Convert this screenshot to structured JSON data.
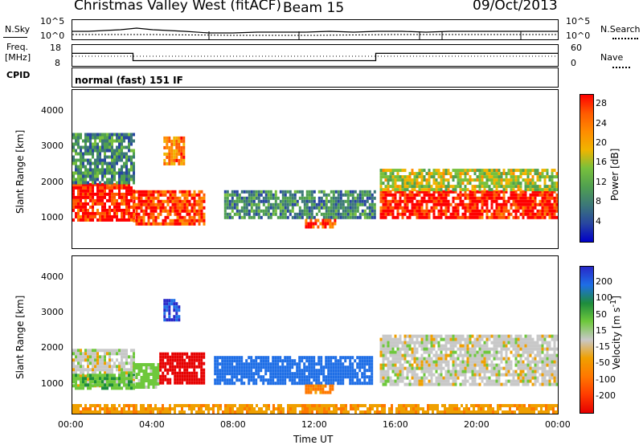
{
  "header": {
    "station": "Christmas Valley West (fitACF)",
    "beam": "Beam 15",
    "date": "09/Oct/2013"
  },
  "status": {
    "nsky_label": "N.Sky",
    "nsearch_label": "N.Search",
    "freq_label_1": "Freq.",
    "freq_label_2": "[MHz]",
    "nave_label": "Nave",
    "cpid_label": "CPID",
    "mode_text": "normal (fast) 151 IF",
    "noise_ticks_left": [
      "10^5",
      "10^0"
    ],
    "noise_ticks_right": [
      "10^5",
      "10^0"
    ],
    "freq_ticks": [
      "18",
      "8"
    ],
    "nave_ticks": [
      "60",
      "0"
    ],
    "freq_steps": [
      {
        "start": "00:00",
        "end": "03:00",
        "freq_mhz": 14
      },
      {
        "start": "03:00",
        "end": "15:00",
        "freq_mhz": 10.5
      },
      {
        "start": "15:00",
        "end": "24:00",
        "freq_mhz": 14
      }
    ]
  },
  "chart_data": [
    {
      "type": "heatmap",
      "parameter": "Power",
      "ylabel": "Slant Range [km]",
      "xlabel": "Time UT",
      "x_ticks": [
        "00:00",
        "04:00",
        "08:00",
        "12:00",
        "16:00",
        "20:00",
        "00:00"
      ],
      "x_range_hours": [
        0,
        24
      ],
      "y_ticks": [
        1000,
        2000,
        3000,
        4000
      ],
      "y_range_km": [
        180,
        4600
      ],
      "colorbar_label": "Power [dB]",
      "colorbar_ticks": [
        4,
        8,
        12,
        16,
        20,
        24,
        28
      ],
      "colorbar_range": [
        0,
        30
      ],
      "colors": [
        "#0000c8",
        "#2846a0",
        "#3c7878",
        "#50a050",
        "#78c03c",
        "#f0b400",
        "#ff8c00",
        "#ff5a00",
        "#ff0000"
      ],
      "echo_regions": [
        {
          "start_hour": 0.0,
          "end_hour": 3.0,
          "range_min_km": 1000,
          "range_max_km": 2000,
          "level": 28
        },
        {
          "start_hour": 0.0,
          "end_hour": 3.0,
          "range_min_km": 2000,
          "range_max_km": 3400,
          "level": 10
        },
        {
          "start_hour": 3.0,
          "end_hour": 6.5,
          "range_min_km": 900,
          "range_max_km": 1800,
          "level": 26
        },
        {
          "start_hour": 4.5,
          "end_hour": 5.5,
          "range_min_km": 2500,
          "range_max_km": 3300,
          "level": 22
        },
        {
          "start_hour": 7.5,
          "end_hour": 15.0,
          "range_min_km": 1000,
          "range_max_km": 1800,
          "level": 9
        },
        {
          "start_hour": 11.5,
          "end_hour": 13.0,
          "range_min_km": 800,
          "range_max_km": 1000,
          "level": 26
        },
        {
          "start_hour": 15.2,
          "end_hour": 24.0,
          "range_min_km": 1000,
          "range_max_km": 1800,
          "level": 28
        },
        {
          "start_hour": 15.2,
          "end_hour": 24.0,
          "range_min_km": 1800,
          "range_max_km": 2400,
          "level": 16
        }
      ]
    },
    {
      "type": "heatmap",
      "parameter": "Velocity",
      "ylabel": "Slant Range [km]",
      "xlabel": "Time UT",
      "x_ticks": [
        "00:00",
        "04:00",
        "08:00",
        "12:00",
        "16:00",
        "20:00",
        "00:00"
      ],
      "x_range_hours": [
        0,
        24
      ],
      "y_ticks": [
        1000,
        2000,
        3000,
        4000
      ],
      "y_range_km": [
        180,
        4600
      ],
      "colorbar_label": "Velocity [m s^-1]",
      "colorbar_ticks": [
        200,
        100,
        50,
        15,
        -15,
        -50,
        -100,
        -200
      ],
      "colors": [
        "#2828c8",
        "#1e6ee6",
        "#1e8c3c",
        "#6ec83c",
        "#c8c8c8",
        "#f0a000",
        "#ff7800",
        "#ff3c00",
        "#e60000"
      ],
      "echo_regions": [
        {
          "start_hour": 0.0,
          "end_hour": 3.0,
          "range_min_km": 1000,
          "range_max_km": 2000,
          "level": 0
        },
        {
          "start_hour": 0.0,
          "end_hour": 3.0,
          "range_min_km": 900,
          "range_max_km": 1300,
          "level": 40
        },
        {
          "start_hour": 3.0,
          "end_hour": 4.3,
          "range_min_km": 900,
          "range_max_km": 1600,
          "level": 30
        },
        {
          "start_hour": 4.3,
          "end_hour": 6.5,
          "range_min_km": 1000,
          "range_max_km": 1900,
          "level": -220
        },
        {
          "start_hour": 4.5,
          "end_hour": 5.3,
          "range_min_km": 2800,
          "range_max_km": 3400,
          "level": 200
        },
        {
          "start_hour": 7.0,
          "end_hour": 14.8,
          "range_min_km": 1000,
          "range_max_km": 1800,
          "level": 130
        },
        {
          "start_hour": 11.5,
          "end_hour": 13.0,
          "range_min_km": 800,
          "range_max_km": 1000,
          "level": -60
        },
        {
          "start_hour": 15.2,
          "end_hour": 24.0,
          "range_min_km": 1000,
          "range_max_km": 2400,
          "level": 0
        },
        {
          "start_hour": 0.0,
          "end_hour": 24.0,
          "range_min_km": 200,
          "range_max_km": 450,
          "level": -40
        }
      ]
    }
  ]
}
